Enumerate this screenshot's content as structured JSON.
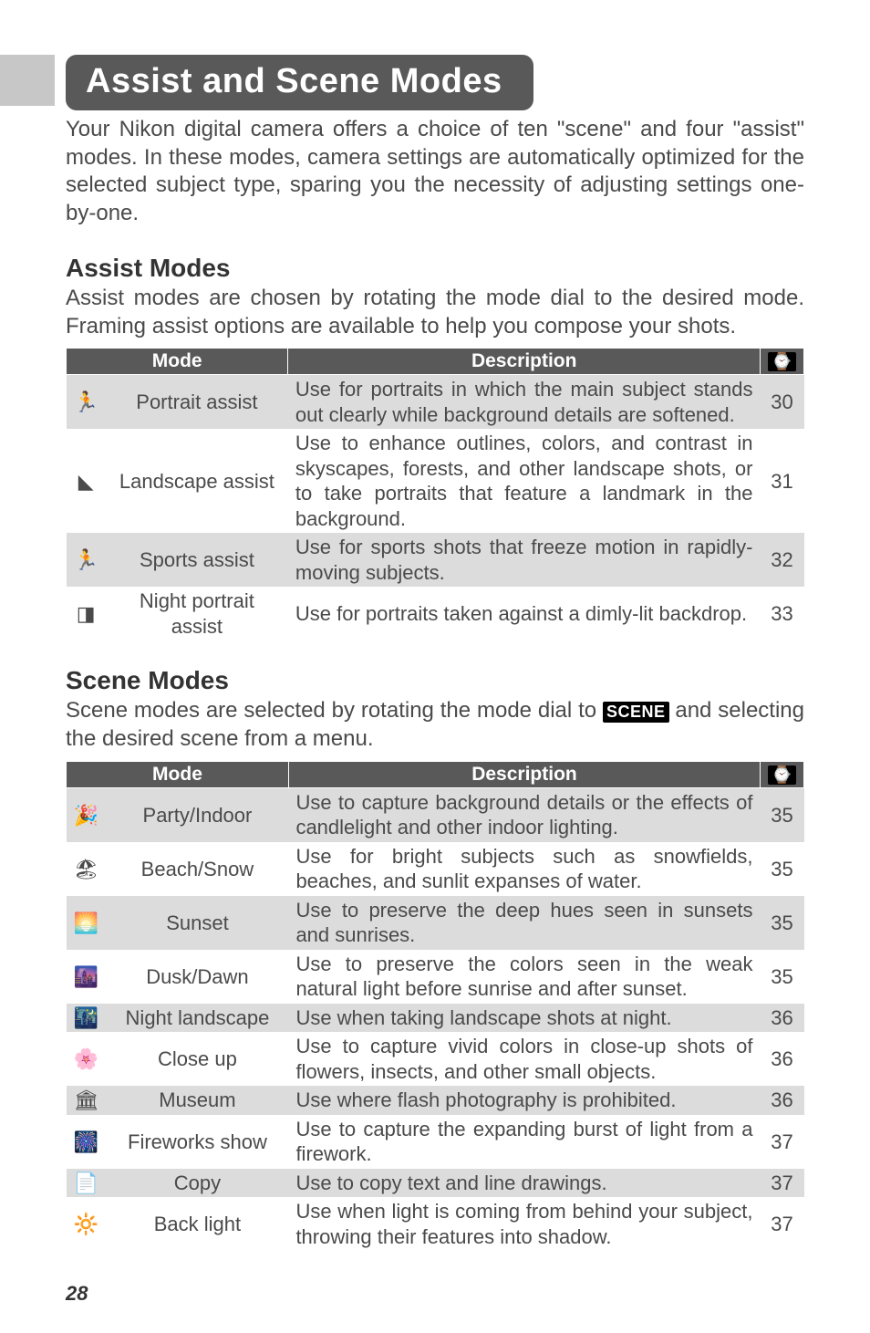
{
  "title": "Assist and Scene Modes",
  "intro": "Your Nikon digital camera offers a choice of ten \"scene\" and four \"assist\" modes.  In these modes, camera settings are automatically optimized for the selected subject type, sparing you the necessity of adjusting settings one-by-one.",
  "headers": {
    "mode": "Mode",
    "desc": "Description",
    "page_icon": "⌚"
  },
  "assist": {
    "heading": "Assist Modes",
    "text": "Assist modes are chosen by rotating the mode dial to the desired mode. Framing assist options are available to help you compose your shots.",
    "rows": [
      {
        "icon": "🏃",
        "mode": "Portrait assist",
        "desc": "Use for portraits in which the main subject stands out clearly while background details are softened.",
        "page": "30",
        "band": true
      },
      {
        "icon": "◣",
        "mode": "Landscape assist",
        "desc": "Use to enhance outlines, colors, and contrast in sky­scapes, forests, and other landscape shots, or to take portraits that feature a landmark in the background.",
        "page": "31",
        "band": false
      },
      {
        "icon": "🏃",
        "mode": "Sports assist",
        "desc": "Use for sports shots that freeze motion in rapidly-moving subjects.",
        "page": "32",
        "band": true
      },
      {
        "icon": "◨",
        "mode": "Night portrait assist",
        "desc": "Use for portraits taken against a dimly-lit backdrop.",
        "page": "33",
        "band": false
      }
    ]
  },
  "scene": {
    "heading": "Scene Modes",
    "text_pre": "Scene modes are selected by rotating the mode dial to ",
    "badge": "SCENE",
    "text_post": " and selecting the desired scene from a menu.",
    "rows": [
      {
        "icon": "🎉",
        "mode": "Party/Indoor",
        "desc": "Use to capture background details or the effects of candlelight and other indoor lighting.",
        "page": "35",
        "band": true
      },
      {
        "icon": "🏖",
        "mode": "Beach/Snow",
        "desc": "Use for bright subjects such as snowfields, beaches, and sunlit expanses of water.",
        "page": "35",
        "band": false
      },
      {
        "icon": "🌅",
        "mode": "Sunset",
        "desc": "Use to preserve the deep hues seen in sunsets and sunrises.",
        "page": "35",
        "band": true
      },
      {
        "icon": "🌆",
        "mode": "Dusk/Dawn",
        "desc": "Use to preserve the colors seen in the weak natural light before sunrise and after sunset.",
        "page": "35",
        "band": false
      },
      {
        "icon": "🌃",
        "mode": "Night landscape",
        "desc": "Use when taking landscape shots at night.",
        "page": "36",
        "band": true
      },
      {
        "icon": "🌸",
        "mode": "Close up",
        "desc": "Use to capture vivid colors in close-up shots of flow­ers, insects, and other small objects.",
        "page": "36",
        "band": false
      },
      {
        "icon": "🏛",
        "mode": "Museum",
        "desc": "Use where flash photography is prohibited.",
        "page": "36",
        "band": true
      },
      {
        "icon": "🎆",
        "mode": "Fireworks show",
        "desc": "Use to capture the expanding burst of light from a firework.",
        "page": "37",
        "band": false
      },
      {
        "icon": "📄",
        "mode": "Copy",
        "desc": "Use to copy text and line drawings.",
        "page": "37",
        "band": true
      },
      {
        "icon": "🔆",
        "mode": "Back light",
        "desc": "Use when light is coming from behind your subject, throwing their features into shadow.",
        "page": "37",
        "band": false
      }
    ]
  },
  "page_number": "28",
  "colors": {
    "tab_bg": "#c7c7c7",
    "pill_bg": "#595959",
    "header_bg": "#595959",
    "band_bg": "#dcdcdc",
    "text": "#4a4a4a",
    "heading": "#333333"
  }
}
